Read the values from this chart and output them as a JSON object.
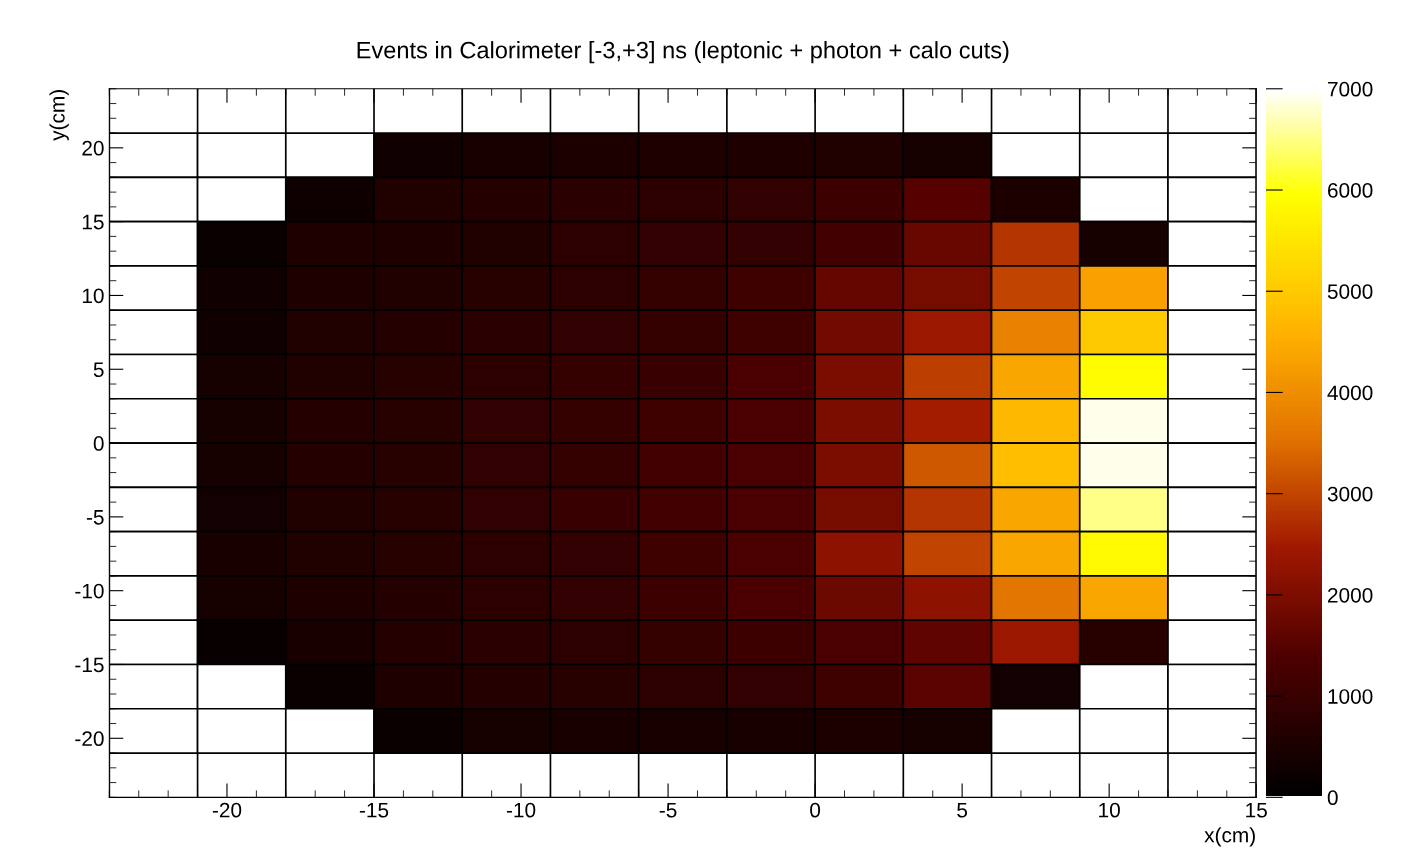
{
  "chart_data": {
    "type": "heatmap",
    "title": "Events in Calorimeter [-3,+3] ns (leptonic + photon + calo cuts)",
    "xlabel": "x(cm)",
    "ylabel": "y(cm)",
    "x": [
      -22.5,
      -19.5,
      -16.5,
      -13.5,
      -10.5,
      -7.5,
      -4.5,
      -1.5,
      1.5,
      4.5,
      7.5,
      10.5,
      13.5
    ],
    "y": [
      19.5,
      16.5,
      13.5,
      10.5,
      7.5,
      4.5,
      1.5,
      -1.5,
      -4.5,
      -7.5,
      -10.5,
      -13.5,
      -16.5,
      -19.5
    ],
    "xlim": [
      -24,
      15
    ],
    "ylim": [
      -24,
      24
    ],
    "xticks": [
      -20,
      -15,
      -10,
      -5,
      0,
      5,
      10,
      15
    ],
    "yticks": [
      -20,
      -15,
      -10,
      -5,
      0,
      5,
      10,
      15,
      20
    ],
    "clim": [
      0,
      7000
    ],
    "cticks": [
      0,
      1000,
      2000,
      3000,
      4000,
      5000,
      6000,
      7000
    ],
    "cells": [
      [
        null,
        null,
        null,
        300,
        450,
        500,
        550,
        550,
        600,
        400,
        null,
        null,
        null
      ],
      [
        null,
        null,
        250,
        600,
        650,
        750,
        800,
        850,
        1050,
        1450,
        500,
        null,
        null
      ],
      [
        null,
        200,
        550,
        550,
        600,
        800,
        900,
        900,
        1200,
        1700,
        2800,
        400,
        null
      ],
      [
        null,
        300,
        550,
        600,
        700,
        800,
        950,
        1100,
        1650,
        1900,
        3000,
        4300,
        null
      ],
      [
        null,
        300,
        600,
        650,
        750,
        850,
        950,
        1100,
        1850,
        2400,
        3800,
        5000,
        null
      ],
      [
        null,
        400,
        600,
        700,
        800,
        950,
        1000,
        1300,
        1950,
        2900,
        4400,
        5900,
        null
      ],
      [
        null,
        400,
        650,
        700,
        850,
        950,
        1100,
        1300,
        1950,
        2500,
        4700,
        6900,
        null
      ],
      [
        null,
        400,
        650,
        700,
        850,
        950,
        1150,
        1300,
        1950,
        3200,
        4800,
        6900,
        null
      ],
      [
        null,
        350,
        600,
        700,
        850,
        1000,
        1200,
        1300,
        1900,
        2800,
        4400,
        6500,
        null
      ],
      [
        null,
        450,
        600,
        700,
        800,
        900,
        1100,
        1300,
        2200,
        3000,
        4400,
        5800,
        null
      ],
      [
        null,
        400,
        550,
        650,
        800,
        900,
        1050,
        1300,
        1750,
        2200,
        3600,
        4400,
        null
      ],
      [
        null,
        150,
        450,
        650,
        750,
        800,
        950,
        1050,
        1300,
        1600,
        2400,
        700,
        null
      ],
      [
        null,
        null,
        200,
        550,
        650,
        700,
        800,
        900,
        1100,
        1550,
        350,
        null,
        null
      ],
      [
        null,
        null,
        null,
        200,
        400,
        450,
        450,
        450,
        500,
        400,
        null,
        null,
        null
      ]
    ]
  }
}
